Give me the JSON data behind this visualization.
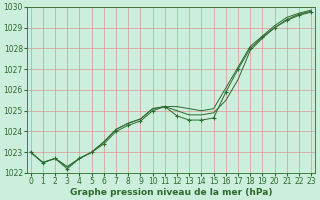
{
  "xlabel": "Graphe pression niveau de la mer (hPa)",
  "x": [
    0,
    1,
    2,
    3,
    4,
    5,
    6,
    7,
    8,
    9,
    10,
    11,
    12,
    13,
    14,
    15,
    16,
    17,
    18,
    19,
    20,
    21,
    22,
    23
  ],
  "line1": [
    1023.0,
    1022.5,
    1022.7,
    1022.3,
    1022.7,
    1023.0,
    1023.5,
    1024.1,
    1024.4,
    1024.6,
    1025.1,
    1025.2,
    1025.2,
    1025.1,
    1025.0,
    1025.1,
    1026.1,
    1027.1,
    1028.1,
    1028.6,
    1029.1,
    1029.5,
    1029.7,
    1029.85
  ],
  "line2": [
    1023.0,
    1022.5,
    1022.7,
    1022.3,
    1022.7,
    1023.0,
    1023.5,
    1024.1,
    1024.4,
    1024.6,
    1025.1,
    1025.2,
    1025.0,
    1024.8,
    1024.8,
    1024.9,
    1025.5,
    1026.5,
    1027.9,
    1028.5,
    1029.0,
    1029.4,
    1029.65,
    1029.8
  ],
  "line3": [
    1023.0,
    1022.5,
    1022.7,
    1022.2,
    1022.7,
    1023.0,
    1023.4,
    1024.0,
    1024.3,
    1024.5,
    1025.0,
    1025.2,
    1024.75,
    1024.55,
    1024.55,
    1024.65,
    1025.9,
    1027.0,
    1028.0,
    1028.55,
    1029.0,
    1029.35,
    1029.6,
    1029.75
  ],
  "ylim": [
    1022.0,
    1030.0
  ],
  "yticks": [
    1022,
    1023,
    1024,
    1025,
    1026,
    1027,
    1028,
    1029,
    1030
  ],
  "xticks": [
    0,
    1,
    2,
    3,
    4,
    5,
    6,
    7,
    8,
    9,
    10,
    11,
    12,
    13,
    14,
    15,
    16,
    17,
    18,
    19,
    20,
    21,
    22,
    23
  ],
  "line_color": "#2d6a2d",
  "bg_color": "#cceedd",
  "grid_color_major": "#ff9999",
  "grid_color_minor": "#ffcccc",
  "label_color": "#2d6a2d",
  "xlabel_fontsize": 6.5,
  "tick_fontsize": 5.5,
  "marker_line_idx": 2
}
